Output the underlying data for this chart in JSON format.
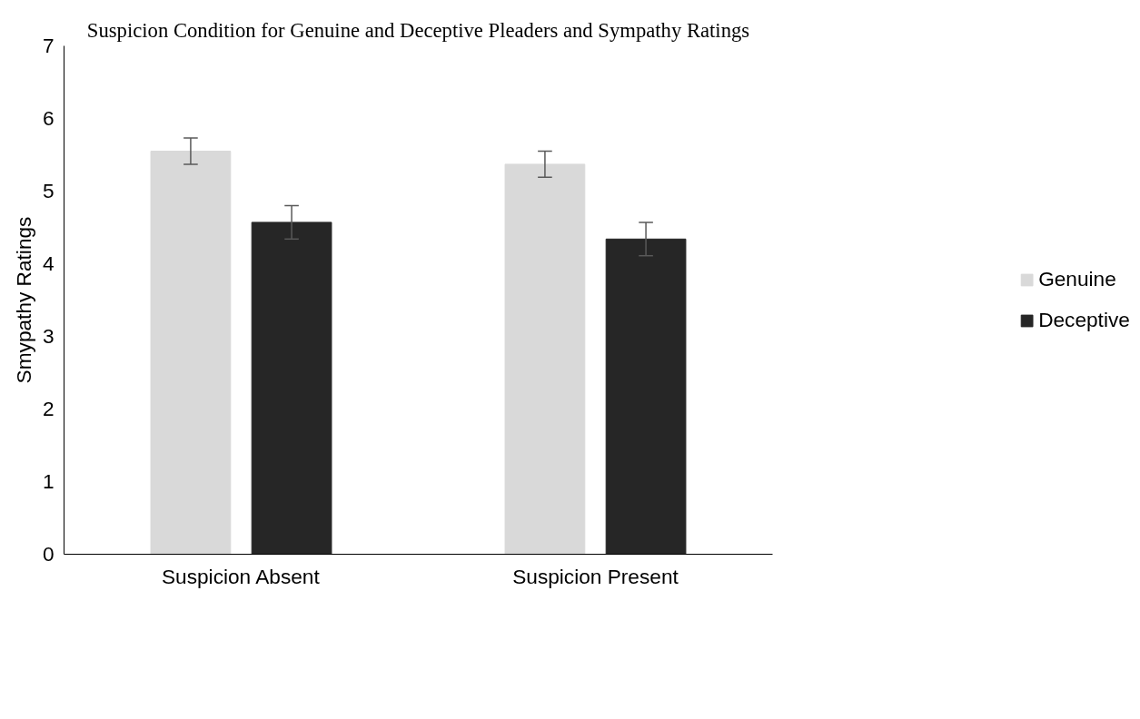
{
  "chart_data": {
    "type": "bar",
    "title": "Suspicion Condition for Genuine and Deceptive Pleaders and Sympathy Ratings",
    "ylabel": "Smypathy Ratings",
    "categories": [
      "Suspicion Absent",
      "Suspicion Present"
    ],
    "series": [
      {
        "name": "Genuine",
        "color": "#d9d9d9",
        "values": [
          5.55,
          5.37
        ],
        "errors": [
          0.18,
          0.18
        ]
      },
      {
        "name": "Deceptive",
        "color": "#262626",
        "values": [
          4.57,
          4.34
        ],
        "errors": [
          0.23,
          0.23
        ]
      }
    ],
    "ylim": [
      0,
      7
    ],
    "yticks": [
      0,
      1,
      2,
      3,
      4,
      5,
      6,
      7
    ],
    "grid": false,
    "legend": "right"
  }
}
